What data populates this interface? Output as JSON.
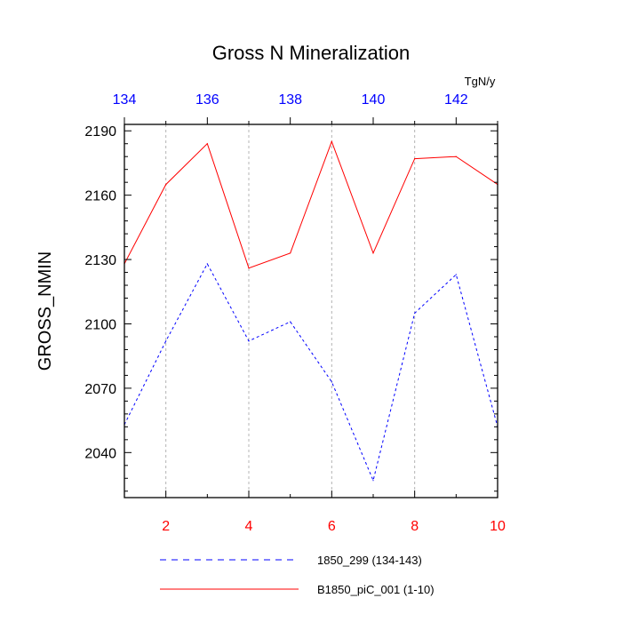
{
  "chart_data": {
    "type": "line",
    "title": "Gross N Mineralization",
    "units": "TgN/y",
    "ylabel": "GROSS_NMIN",
    "xlabel": "",
    "ylim": [
      2019,
      2193
    ],
    "y_ticks": [
      2040,
      2070,
      2100,
      2130,
      2160,
      2190
    ],
    "y_tick_labels": [
      "2040",
      "2070",
      "2100",
      "2130",
      "2160",
      "2190"
    ],
    "x_bottom": {
      "range": [
        1,
        10
      ],
      "ticks": [
        2,
        4,
        6,
        8,
        10
      ],
      "tick_labels": [
        "2",
        "4",
        "6",
        "8",
        "10"
      ],
      "color": "#ff0000"
    },
    "x_top": {
      "range": [
        134,
        143
      ],
      "ticks": [
        134,
        136,
        138,
        140,
        142
      ],
      "tick_labels": [
        "134",
        "136",
        "138",
        "140",
        "142"
      ],
      "color": "#0000ff"
    },
    "grid": "vertical-dashed",
    "series": [
      {
        "name": "1850_299 (134-143)",
        "axis": "top",
        "color": "#0000ff",
        "dash": "dashed",
        "x": [
          134,
          135,
          136,
          137,
          138,
          139,
          140,
          141,
          142,
          143
        ],
        "values": [
          2053,
          2092,
          2128,
          2092,
          2101,
          2073,
          2027,
          2105,
          2123,
          2052
        ]
      },
      {
        "name": "B1850_piC_001 (1-10)",
        "axis": "bottom",
        "color": "#ff0000",
        "dash": "solid",
        "x": [
          1,
          2,
          3,
          4,
          5,
          6,
          7,
          8,
          9,
          10
        ],
        "values": [
          2128,
          2165,
          2184,
          2126,
          2133,
          2185,
          2133,
          2177,
          2178,
          2165
        ]
      }
    ]
  }
}
